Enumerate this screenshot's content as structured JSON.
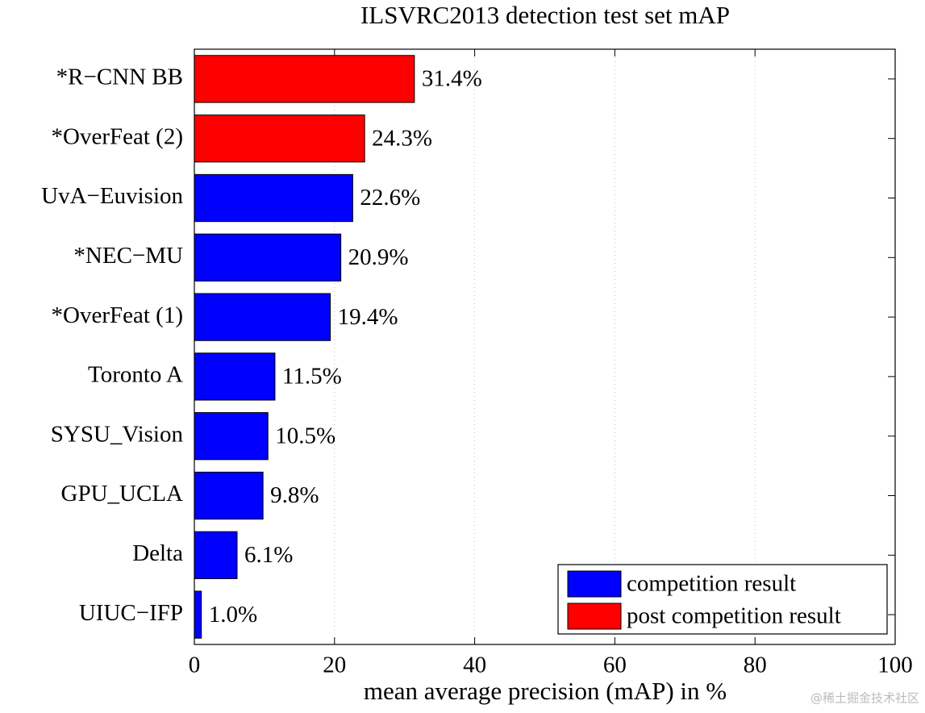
{
  "chart_data": {
    "type": "barh",
    "title": "ILSVRC2013 detection test set mAP",
    "x_label": "mean average precision (mAP) in %",
    "categories": [
      "*R−CNN BB",
      "*OverFeat (2)",
      "UvA−Euvision",
      "*NEC−MU",
      "*OverFeat (1)",
      "Toronto A",
      "SYSU_Vision",
      "GPU_UCLA",
      "Delta",
      "UIUC−IFP"
    ],
    "series": [
      {
        "name": "competition result",
        "color": "#0000ff",
        "values": [
          null,
          null,
          22.6,
          20.9,
          19.4,
          11.5,
          10.5,
          9.8,
          6.1,
          1.0
        ],
        "value_labels": [
          null,
          null,
          "22.6%",
          "20.9%",
          "19.4%",
          "11.5%",
          "10.5%",
          "9.8%",
          "6.1%",
          "1.0%"
        ]
      },
      {
        "name": "post competition result",
        "color": "#ff0000",
        "values": [
          31.4,
          24.3,
          null,
          null,
          null,
          null,
          null,
          null,
          null,
          null
        ],
        "value_labels": [
          "31.4%",
          "24.3%",
          null,
          null,
          null,
          null,
          null,
          null,
          null,
          null
        ]
      }
    ],
    "xlim": [
      0,
      100
    ],
    "xticks": [
      0,
      20,
      40,
      60,
      80,
      100
    ],
    "grid": true,
    "legend": "lower right"
  },
  "watermark": "@稀土掘金技术社区"
}
